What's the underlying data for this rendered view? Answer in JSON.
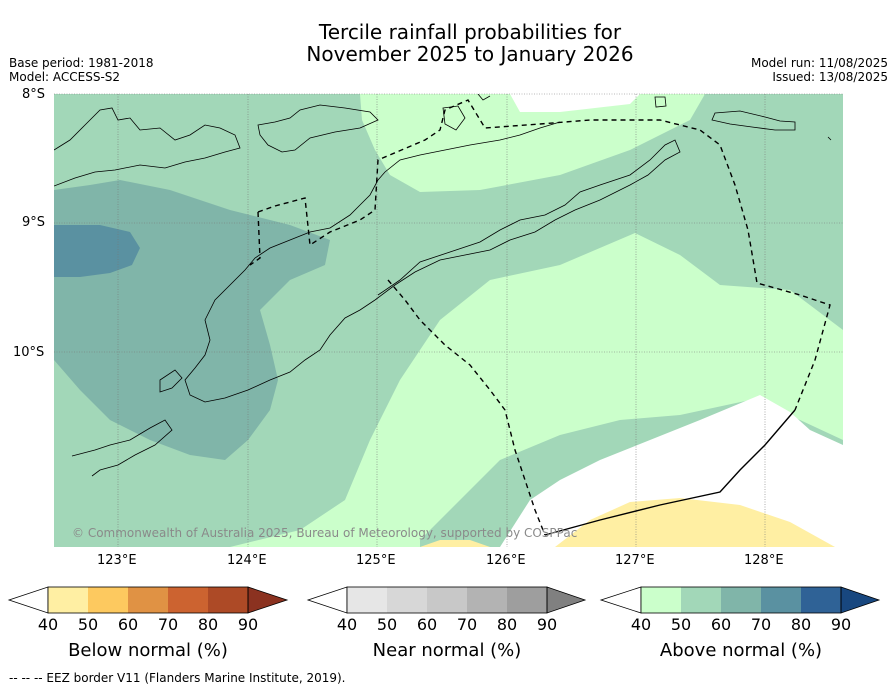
{
  "title_line1": "Tercile rainfall probabilities for",
  "title_line2": "November 2025 to January 2026",
  "base_period": "Base period: 1981-2018",
  "model": "Model: ACCESS-S2",
  "model_run": "Model run: 11/08/2025",
  "issued": "Issued: 13/08/2025",
  "lat_labels": [
    "8°S",
    "9°S",
    "10°S"
  ],
  "lon_labels": [
    "123°E",
    "124°E",
    "125°E",
    "126°E",
    "127°E",
    "128°E"
  ],
  "copyright": "© Commonwealth of Australia 2025, Bureau of Meteorology, supported by COSPPac",
  "footer": "--  --  -- EEZ border V11 (Flanders Marine Institute, 2019).",
  "colorbars": [
    {
      "label": "Below normal (%)",
      "ticks": [
        "40",
        "50",
        "60",
        "70",
        "80",
        "90"
      ],
      "colors": [
        "#ffffff",
        "#ffefa3",
        "#fdc95f",
        "#e09244",
        "#cc6330",
        "#ad4a26",
        "#8b3220"
      ]
    },
    {
      "label": "Near normal (%)",
      "ticks": [
        "40",
        "50",
        "60",
        "70",
        "80",
        "90"
      ],
      "colors": [
        "#ffffff",
        "#e6e6e6",
        "#d7d7d7",
        "#c8c8c8",
        "#b3b3b3",
        "#9e9e9e",
        "#808080"
      ]
    },
    {
      "label": "Above normal (%)",
      "ticks": [
        "40",
        "50",
        "60",
        "70",
        "80",
        "90"
      ],
      "colors": [
        "#ffffff",
        "#cbffcb",
        "#a2d7b8",
        "#80b5a9",
        "#5a91a1",
        "#2f6296",
        "#18477f"
      ]
    }
  ]
}
